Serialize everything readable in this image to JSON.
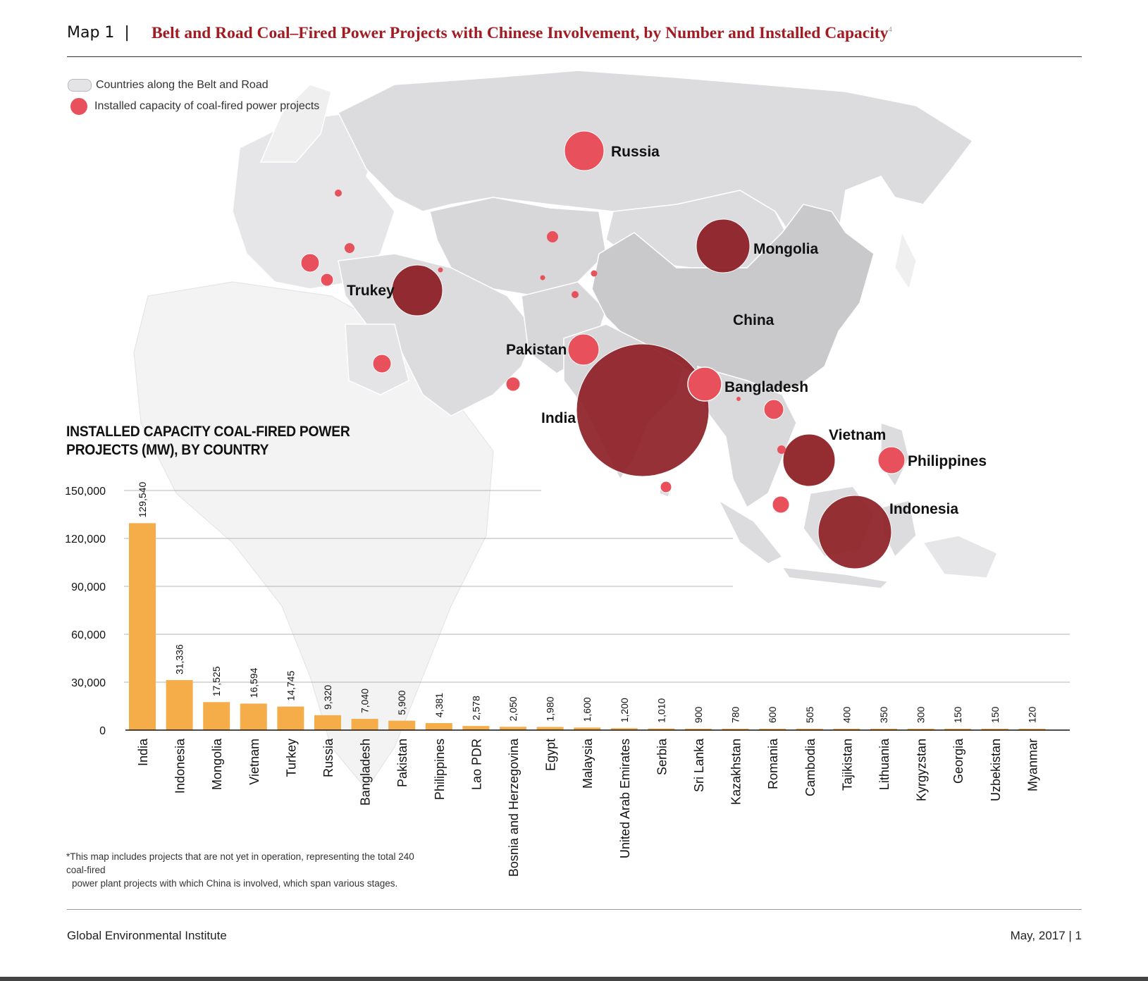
{
  "header": {
    "map_label": "Map 1",
    "separator": "|",
    "title": "Belt and Road Coal–Fired Power Projects with Chinese Involvement, by Number and Installed Capacity",
    "title_note": "4"
  },
  "legend": {
    "countries_label": "Countries along the Belt and Road",
    "capacity_label": "Installed capacity of coal-fired power projects"
  },
  "map_labels": {
    "russia": "Russia",
    "mongolia": "Mongolia",
    "turkey": "Trukey",
    "china": "China",
    "pakistan": "Pakistan",
    "bangladesh": "Bangladesh",
    "india": "India",
    "vietnam": "Vietnam",
    "philippines": "Philippines",
    "indonesia": "Indonesia"
  },
  "colors": {
    "title_red": "#a11c22",
    "bubble_dark": "#8f2228",
    "bubble_light": "#e8505b",
    "bar": "#f5ad4a",
    "land_member": "#dddddf",
    "land_other": "#f1f1f2"
  },
  "chart_data": {
    "type": "bar",
    "title": "INSTALLED CAPACITY COAL-FIRED POWER PROJECTS (MW), BY COUNTRY",
    "title_lines": [
      "INSTALLED CAPACITY COAL-FIRED POWER",
      "PROJECTS (MW), BY COUNTRY"
    ],
    "categories": [
      "India",
      "Indonesia",
      "Mongolia",
      "Vietnam",
      "Turkey",
      "Russia",
      "Bangladesh",
      "Pakistan",
      "Philippines",
      "Lao PDR",
      "Bosnia and Herzegovina",
      "Egypt",
      "Malaysia",
      "United Arab Emirates",
      "Serbia",
      "Sri Lanka",
      "Kazakhstan",
      "Romania",
      "Cambodia",
      "Tajikistan",
      "Lithuania",
      "Kyrgyzstan",
      "Georgia",
      "Uzbekistan",
      "Myanmar"
    ],
    "values": [
      129540,
      31336,
      17525,
      16594,
      14745,
      9320,
      7040,
      5900,
      4381,
      2578,
      2050,
      1980,
      1600,
      1200,
      1010,
      900,
      780,
      600,
      505,
      400,
      350,
      300,
      150,
      150,
      120
    ],
    "value_labels": [
      "129,540",
      "31,336",
      "17,525",
      "16,594",
      "14,745",
      "9,320",
      "7,040",
      "5,900",
      "4,381",
      "2,578",
      "2,050",
      "1,980",
      "1,600",
      "1,200",
      "1,010",
      "900",
      "780",
      "600",
      "505",
      "400",
      "350",
      "300",
      "150",
      "150",
      "120"
    ],
    "yticks": [
      0,
      30000,
      60000,
      90000,
      120000,
      150000
    ],
    "ytick_labels": [
      "0",
      "30,000",
      "60,000",
      "90,000",
      "120,000",
      "150,000"
    ],
    "ylim": [
      0,
      150000
    ],
    "xlabel": "",
    "ylabel": "",
    "grid": true
  },
  "footnote": {
    "line1": "*This map includes projects that are not yet in operation, representing the total 240 coal-fired",
    "line2": "power plant projects with which China is involved, which span various stages."
  },
  "footer": {
    "org": "Global Environmental Institute",
    "date_page": "May, 2017  |  1"
  }
}
